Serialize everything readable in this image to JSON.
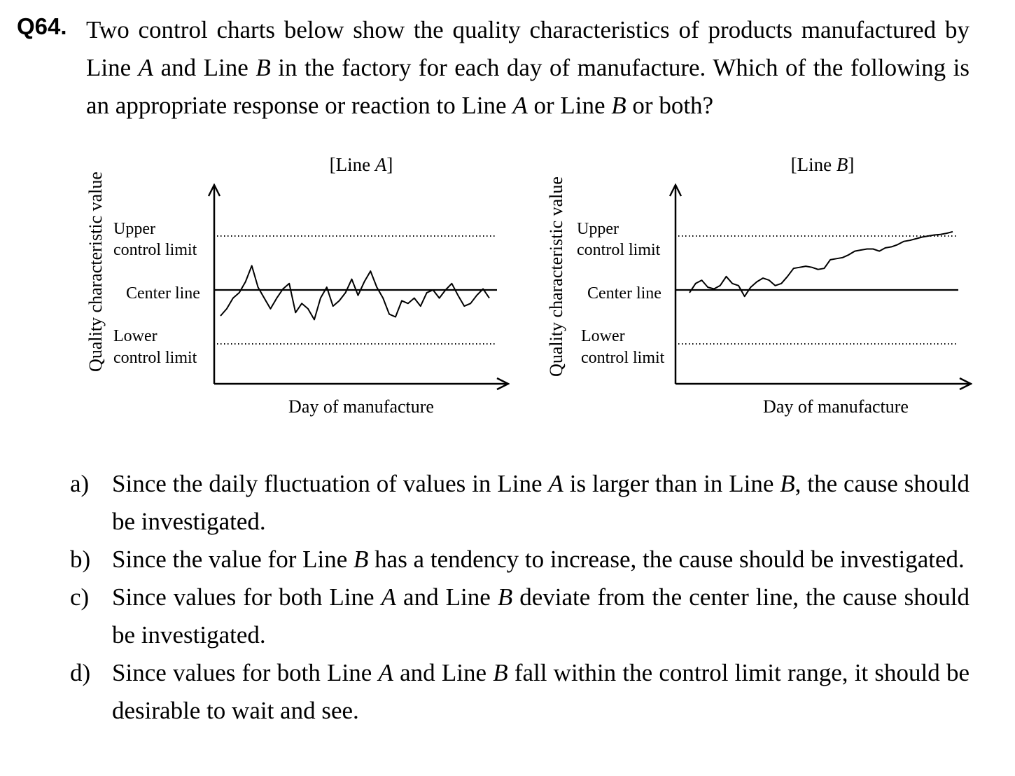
{
  "question": {
    "number": "Q64.",
    "parts": [
      {
        "t": "Two control charts below show the quality characteristics of products manufactured by Line "
      },
      {
        "t": "A",
        "i": true
      },
      {
        "t": " and Line "
      },
      {
        "t": "B",
        "i": true
      },
      {
        "t": " in the factory for each day of manufacture.    Which of the following is an appropriate response or reaction to Line "
      },
      {
        "t": "A",
        "i": true
      },
      {
        "t": " or Line "
      },
      {
        "t": "B",
        "i": true
      },
      {
        "t": " or both?"
      }
    ]
  },
  "charts": [
    {
      "title_prefix": "[Line ",
      "title_italic": "A",
      "title_suffix": "]",
      "ylabel": "Quality characteristic value",
      "xlabel": "Day of manufacture",
      "ucl_label": [
        "Upper",
        "control limit"
      ],
      "center_label": "Center line",
      "lcl_label": [
        "Lower",
        "control limit"
      ]
    },
    {
      "title_prefix": "[Line ",
      "title_italic": "B",
      "title_suffix": "]",
      "ylabel": "Quality characteristic value",
      "xlabel": "Day of manufacture",
      "ucl_label": [
        "Upper",
        "control limit"
      ],
      "center_label": "Center line",
      "lcl_label": [
        "Lower",
        "control limit"
      ]
    }
  ],
  "chart_data": [
    {
      "type": "line",
      "limits": {
        "ucl": 1,
        "center": 0,
        "lcl": -1
      },
      "ylim": [
        -1.75,
        2.0
      ],
      "x": [
        0,
        1,
        2,
        3,
        4,
        5,
        6,
        7,
        8,
        9,
        10,
        11,
        12,
        13,
        14,
        15,
        16,
        17,
        18,
        19,
        20,
        21,
        22,
        23,
        24,
        25,
        26,
        27,
        28,
        29,
        30,
        31,
        32,
        33,
        34,
        35,
        36,
        37,
        38,
        39,
        40,
        41,
        42,
        43
      ],
      "series": [
        {
          "values": [
            -0.48,
            -0.35,
            -0.15,
            -0.05,
            0.15,
            0.45,
            0.05,
            -0.15,
            -0.35,
            -0.15,
            0.02,
            0.12,
            -0.42,
            -0.25,
            -0.35,
            -0.55,
            -0.15,
            0.05,
            -0.3,
            -0.2,
            -0.05,
            0.2,
            -0.1,
            0.15,
            0.35,
            0.05,
            -0.15,
            -0.45,
            -0.5,
            -0.2,
            -0.25,
            -0.15,
            -0.3,
            -0.05,
            0.0,
            -0.15,
            0.0,
            0.12,
            -0.1,
            -0.3,
            -0.25,
            -0.1,
            0.02,
            -0.15
          ]
        }
      ]
    },
    {
      "type": "line",
      "limits": {
        "ucl": 1,
        "center": 0,
        "lcl": -1
      },
      "ylim": [
        -1.75,
        2.0
      ],
      "x": [
        0,
        1,
        2,
        3,
        4,
        5,
        6,
        7,
        8,
        9,
        10,
        11,
        12,
        13,
        14,
        15,
        16,
        17,
        18,
        19,
        20,
        21,
        22,
        23,
        24,
        25,
        26,
        27,
        28,
        29,
        30,
        31,
        32,
        33,
        34,
        35,
        36,
        37,
        38,
        39,
        40,
        41,
        42,
        43
      ],
      "series": [
        {
          "values": [
            -0.05,
            0.12,
            0.18,
            0.05,
            0.02,
            0.08,
            0.25,
            0.12,
            0.08,
            -0.12,
            0.05,
            0.15,
            0.22,
            0.18,
            0.08,
            0.12,
            0.25,
            0.4,
            0.42,
            0.44,
            0.42,
            0.38,
            0.4,
            0.56,
            0.58,
            0.6,
            0.65,
            0.72,
            0.74,
            0.76,
            0.76,
            0.72,
            0.78,
            0.8,
            0.84,
            0.9,
            0.92,
            0.95,
            0.98,
            1.0,
            1.02,
            1.03,
            1.05,
            1.08
          ]
        }
      ]
    }
  ],
  "options": [
    {
      "letter": "a)",
      "parts": [
        {
          "t": "Since the daily fluctuation of values in Line "
        },
        {
          "t": "A",
          "i": true
        },
        {
          "t": " is larger than in Line "
        },
        {
          "t": "B",
          "i": true
        },
        {
          "t": ", the cause should be investigated."
        }
      ]
    },
    {
      "letter": "b)",
      "parts": [
        {
          "t": "Since the value for Line "
        },
        {
          "t": "B",
          "i": true
        },
        {
          "t": " has a tendency to increase, the cause should be investigated."
        }
      ]
    },
    {
      "letter": "c)",
      "parts": [
        {
          "t": "Since values for both Line "
        },
        {
          "t": "A",
          "i": true
        },
        {
          "t": " and Line "
        },
        {
          "t": "B",
          "i": true
        },
        {
          "t": " deviate from the center line, the cause should be investigated."
        }
      ]
    },
    {
      "letter": "d)",
      "parts": [
        {
          "t": "Since values for both Line "
        },
        {
          "t": "A",
          "i": true
        },
        {
          "t": " and Line "
        },
        {
          "t": "B",
          "i": true
        },
        {
          "t": " fall within the control limit range, it should be desirable to wait and see."
        }
      ]
    }
  ]
}
